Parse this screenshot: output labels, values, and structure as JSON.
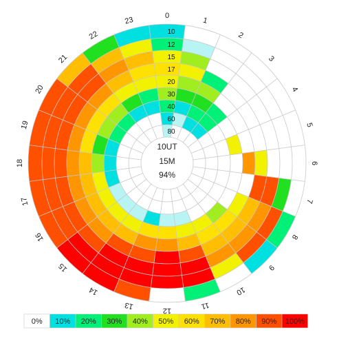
{
  "chart_data": {
    "type": "heatmap",
    "layout": "polar",
    "center_text": [
      "10UT",
      "15M",
      "94%"
    ],
    "hours": [
      "0",
      "1",
      "2",
      "3",
      "4",
      "5",
      "6",
      "7",
      "8",
      "9",
      "10",
      "11",
      "12",
      "13",
      "14",
      "15",
      "16",
      "17",
      "18",
      "19",
      "20",
      "21",
      "22",
      "23"
    ],
    "rings": [
      "80",
      "60",
      "40",
      "30",
      "20",
      "17",
      "15",
      "12",
      "10"
    ],
    "legend": [
      {
        "label": "0%",
        "color": "#ffffff"
      },
      {
        "label": "10%",
        "color": "#00e0e0"
      },
      {
        "label": "20%",
        "color": "#00f078"
      },
      {
        "label": "30%",
        "color": "#20e020"
      },
      {
        "label": "40%",
        "color": "#a0ee20"
      },
      {
        "label": "50%",
        "color": "#f2f200"
      },
      {
        "label": "60%",
        "color": "#ffe100"
      },
      {
        "label": "70%",
        "color": "#ffbe00"
      },
      {
        "label": "80%",
        "color": "#ff9600"
      },
      {
        "label": "90%",
        "color": "#ff5000"
      },
      {
        "label": "100%",
        "color": "#ff0000"
      }
    ],
    "palette_light": [
      "#ffffff",
      "#b8f4f4"
    ],
    "values": [
      [
        0.5,
        1,
        2,
        4,
        5,
        6,
        5,
        2,
        1
      ],
      [
        0,
        0.5,
        1,
        3,
        4,
        5,
        4,
        0.5,
        0
      ],
      [
        0,
        1,
        2,
        3,
        4,
        2,
        0,
        0,
        0
      ],
      [
        0,
        1,
        2,
        2,
        0,
        0,
        0,
        0,
        0
      ],
      [
        0,
        0,
        0,
        0,
        0,
        0,
        0,
        0,
        0
      ],
      [
        0,
        0,
        0,
        5,
        0,
        0,
        0,
        0,
        0
      ],
      [
        0,
        0,
        0,
        0,
        8,
        5,
        0,
        0,
        0
      ],
      [
        0,
        0,
        0,
        0,
        0,
        9,
        9,
        3,
        0
      ],
      [
        0,
        0,
        0,
        0,
        5,
        7,
        8,
        9,
        2
      ],
      [
        0,
        0,
        0,
        4,
        6,
        7,
        8,
        9,
        1
      ],
      [
        0,
        0,
        0,
        5,
        6,
        7,
        8,
        5,
        0
      ],
      [
        0,
        0,
        0.5,
        5,
        7,
        9,
        10,
        10,
        2
      ],
      [
        0,
        0,
        0.5,
        6,
        8,
        10,
        10,
        10,
        0
      ],
      [
        0,
        0,
        1,
        6,
        8,
        9,
        10,
        10,
        9
      ],
      [
        0,
        0,
        0.5,
        5,
        7,
        9,
        10,
        10,
        10
      ],
      [
        0,
        0,
        0.5,
        5,
        7,
        8,
        9,
        10,
        10
      ],
      [
        0,
        0,
        0.5,
        5,
        7,
        8,
        9,
        9,
        9
      ],
      [
        0,
        0,
        1,
        5,
        7,
        8,
        9,
        9,
        9
      ],
      [
        0,
        0,
        1,
        4,
        7,
        8,
        9,
        9,
        9
      ],
      [
        0,
        0,
        1,
        3,
        6,
        8,
        9,
        9,
        9
      ],
      [
        0,
        0,
        2,
        4,
        6,
        8,
        9,
        9,
        9
      ],
      [
        0,
        0,
        2,
        4,
        6,
        8,
        9,
        9,
        7
      ],
      [
        0,
        0,
        1,
        3,
        5,
        7,
        8,
        7,
        3
      ],
      [
        0,
        0,
        1,
        2,
        5,
        6,
        7,
        5,
        1
      ]
    ]
  }
}
